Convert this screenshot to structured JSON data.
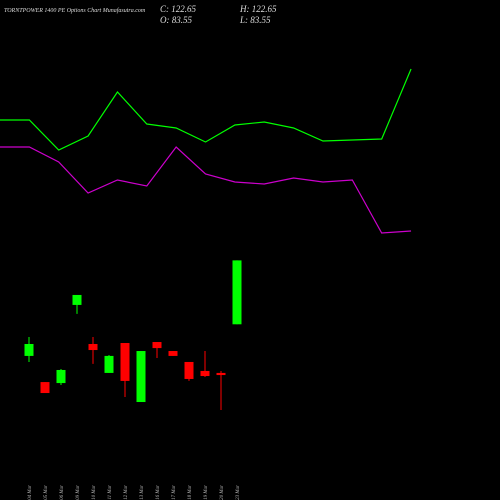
{
  "chart_data": [
    {
      "type": "candlestick",
      "title": "TORNTPOWER 1400 PE Options Chart Munafasutra.com",
      "last": {
        "close_label": "C: 122.65",
        "high_label": "H: 122.65",
        "open_label": "O: 83.55",
        "low_label": "L: 83.55"
      },
      "categories": [
        "04 Mar",
        "05 Mar",
        "06 Mar",
        "09 Mar",
        "10 Mar",
        "11 Mar",
        "12 Mar",
        "13 Mar",
        "16 Mar",
        "17 Mar",
        "18 Mar",
        "19 Mar",
        "20 Mar",
        "23 Mar"
      ],
      "open": [
        64.2,
        48.2,
        47.6,
        95.4,
        71.5,
        53.8,
        72.1,
        36.0,
        72.7,
        67.2,
        60.5,
        55.0,
        53.8,
        83.55
      ],
      "high": [
        75.8,
        48.2,
        56.2,
        101.5,
        75.8,
        64.8,
        72.1,
        67.2,
        72.7,
        67.2,
        60.5,
        67.2,
        55.0,
        122.65
      ],
      "low": [
        60.5,
        41.5,
        46.4,
        89.9,
        59.3,
        53.8,
        39.1,
        36.0,
        62.9,
        64.2,
        48.9,
        51.3,
        31.1,
        83.55
      ],
      "close": [
        71.5,
        41.5,
        55.6,
        101.5,
        67.8,
        64.2,
        48.9,
        67.2,
        69.0,
        64.2,
        50.1,
        51.9,
        52.5,
        122.65
      ],
      "up_color": "#00ff00",
      "down_color": "#ff0000",
      "ylim": [
        25,
        129
      ]
    },
    {
      "type": "line",
      "series": [
        {
          "color": "#00ff00",
          "values": [
            65,
            65,
            50,
            57,
            79,
            63,
            61,
            54,
            62.5,
            64,
            61,
            54.5,
            55,
            55.5,
            90.5
          ]
        },
        {
          "color": "#cc00cc",
          "values": [
            51.5,
            51.5,
            44,
            28.5,
            35,
            32,
            51.5,
            38,
            34,
            33,
            36,
            34,
            35,
            8.5,
            9.5
          ]
        }
      ],
      "ylim": [
        0,
        100
      ]
    }
  ]
}
